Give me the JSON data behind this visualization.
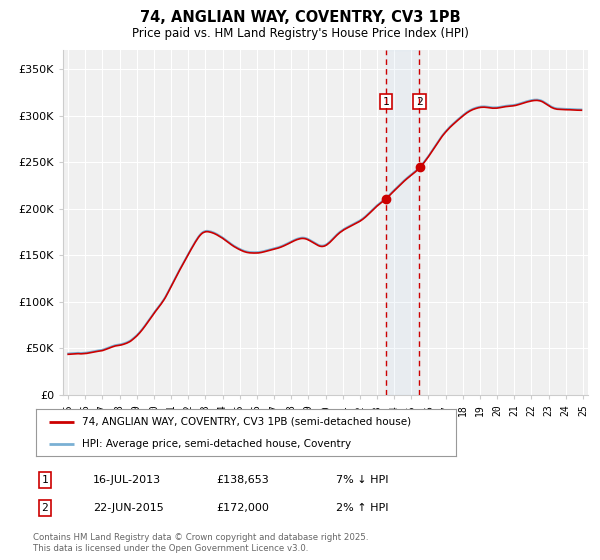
{
  "title": "74, ANGLIAN WAY, COVENTRY, CV3 1PB",
  "subtitle": "Price paid vs. HM Land Registry's House Price Index (HPI)",
  "ylim": [
    0,
    370000
  ],
  "yticks": [
    0,
    50000,
    100000,
    150000,
    200000,
    250000,
    300000,
    350000
  ],
  "ytick_labels": [
    "£0",
    "£50K",
    "£100K",
    "£150K",
    "£200K",
    "£250K",
    "£300K",
    "£350K"
  ],
  "background_color": "#ffffff",
  "plot_bg_color": "#f0f0f0",
  "grid_color": "#ffffff",
  "hpi_color": "#7ab0d4",
  "price_color": "#cc0000",
  "purchase1_date": 2013.54,
  "purchase2_date": 2015.47,
  "purchase1_price": 138653,
  "purchase2_price": 172000,
  "purchase1_label": "16-JUL-2013",
  "purchase2_label": "22-JUN-2015",
  "purchase1_note": "7% ↓ HPI",
  "purchase2_note": "2% ↑ HPI",
  "legend_line1": "74, ANGLIAN WAY, COVENTRY, CV3 1PB (semi-detached house)",
  "legend_line2": "HPI: Average price, semi-detached house, Coventry",
  "footer": "Contains HM Land Registry data © Crown copyright and database right 2025.\nThis data is licensed under the Open Government Licence v3.0.",
  "years": [
    1995.0,
    1995.083,
    1995.167,
    1995.25,
    1995.333,
    1995.417,
    1995.5,
    1995.583,
    1995.667,
    1995.75,
    1995.833,
    1995.917,
    1996.0,
    1996.083,
    1996.167,
    1996.25,
    1996.333,
    1996.417,
    1996.5,
    1996.583,
    1996.667,
    1996.75,
    1996.833,
    1996.917,
    1997.0,
    1997.083,
    1997.167,
    1997.25,
    1997.333,
    1997.417,
    1997.5,
    1997.583,
    1997.667,
    1997.75,
    1997.833,
    1997.917,
    1998.0,
    1998.083,
    1998.167,
    1998.25,
    1998.333,
    1998.417,
    1998.5,
    1998.583,
    1998.667,
    1998.75,
    1998.833,
    1998.917,
    1999.0,
    1999.083,
    1999.167,
    1999.25,
    1999.333,
    1999.417,
    1999.5,
    1999.583,
    1999.667,
    1999.75,
    1999.833,
    1999.917,
    2000.0,
    2000.083,
    2000.167,
    2000.25,
    2000.333,
    2000.417,
    2000.5,
    2000.583,
    2000.667,
    2000.75,
    2000.833,
    2000.917,
    2001.0,
    2001.083,
    2001.167,
    2001.25,
    2001.333,
    2001.417,
    2001.5,
    2001.583,
    2001.667,
    2001.75,
    2001.833,
    2001.917,
    2002.0,
    2002.083,
    2002.167,
    2002.25,
    2002.333,
    2002.417,
    2002.5,
    2002.583,
    2002.667,
    2002.75,
    2002.833,
    2002.917,
    2003.0,
    2003.083,
    2003.167,
    2003.25,
    2003.333,
    2003.417,
    2003.5,
    2003.583,
    2003.667,
    2003.75,
    2003.833,
    2003.917,
    2004.0,
    2004.083,
    2004.167,
    2004.25,
    2004.333,
    2004.417,
    2004.5,
    2004.583,
    2004.667,
    2004.75,
    2004.833,
    2004.917,
    2005.0,
    2005.083,
    2005.167,
    2005.25,
    2005.333,
    2005.417,
    2005.5,
    2005.583,
    2005.667,
    2005.75,
    2005.833,
    2005.917,
    2006.0,
    2006.083,
    2006.167,
    2006.25,
    2006.333,
    2006.417,
    2006.5,
    2006.583,
    2006.667,
    2006.75,
    2006.833,
    2006.917,
    2007.0,
    2007.083,
    2007.167,
    2007.25,
    2007.333,
    2007.417,
    2007.5,
    2007.583,
    2007.667,
    2007.75,
    2007.833,
    2007.917,
    2008.0,
    2008.083,
    2008.167,
    2008.25,
    2008.333,
    2008.417,
    2008.5,
    2008.583,
    2008.667,
    2008.75,
    2008.833,
    2008.917,
    2009.0,
    2009.083,
    2009.167,
    2009.25,
    2009.333,
    2009.417,
    2009.5,
    2009.583,
    2009.667,
    2009.75,
    2009.833,
    2009.917,
    2010.0,
    2010.083,
    2010.167,
    2010.25,
    2010.333,
    2010.417,
    2010.5,
    2010.583,
    2010.667,
    2010.75,
    2010.833,
    2010.917,
    2011.0,
    2011.083,
    2011.167,
    2011.25,
    2011.333,
    2011.417,
    2011.5,
    2011.583,
    2011.667,
    2011.75,
    2011.833,
    2011.917,
    2012.0,
    2012.083,
    2012.167,
    2012.25,
    2012.333,
    2012.417,
    2012.5,
    2012.583,
    2012.667,
    2012.75,
    2012.833,
    2012.917,
    2013.0,
    2013.083,
    2013.167,
    2013.25,
    2013.333,
    2013.417,
    2013.5,
    2013.583,
    2013.667,
    2013.75,
    2013.833,
    2013.917,
    2014.0,
    2014.083,
    2014.167,
    2014.25,
    2014.333,
    2014.417,
    2014.5,
    2014.583,
    2014.667,
    2014.75,
    2014.833,
    2014.917,
    2015.0,
    2015.083,
    2015.167,
    2015.25,
    2015.333,
    2015.417,
    2015.5,
    2015.583,
    2015.667,
    2015.75,
    2015.833,
    2015.917,
    2016.0,
    2016.083,
    2016.167,
    2016.25,
    2016.333,
    2016.417,
    2016.5,
    2016.583,
    2016.667,
    2016.75,
    2016.833,
    2016.917,
    2017.0,
    2017.083,
    2017.167,
    2017.25,
    2017.333,
    2017.417,
    2017.5,
    2017.583,
    2017.667,
    2017.75,
    2017.833,
    2017.917,
    2018.0,
    2018.083,
    2018.167,
    2018.25,
    2018.333,
    2018.417,
    2018.5,
    2018.583,
    2018.667,
    2018.75,
    2018.833,
    2018.917,
    2019.0,
    2019.083,
    2019.167,
    2019.25,
    2019.333,
    2019.417,
    2019.5,
    2019.583,
    2019.667,
    2019.75,
    2019.833,
    2019.917,
    2020.0,
    2020.083,
    2020.167,
    2020.25,
    2020.333,
    2020.417,
    2020.5,
    2020.583,
    2020.667,
    2020.75,
    2020.833,
    2020.917,
    2021.0,
    2021.083,
    2021.167,
    2021.25,
    2021.333,
    2021.417,
    2021.5,
    2021.583,
    2021.667,
    2021.75,
    2021.833,
    2021.917,
    2022.0,
    2022.083,
    2022.167,
    2022.25,
    2022.333,
    2022.417,
    2022.5,
    2022.583,
    2022.667,
    2022.75,
    2022.833,
    2022.917,
    2023.0,
    2023.083,
    2023.167,
    2023.25,
    2023.333,
    2023.417,
    2023.5,
    2023.583,
    2023.667,
    2023.75,
    2023.833,
    2023.917,
    2024.0,
    2024.083,
    2024.167,
    2024.25,
    2024.333,
    2024.417,
    2024.5,
    2024.583,
    2024.667,
    2024.75,
    2024.833,
    2024.917
  ],
  "hpi_values": [
    44500,
    44600,
    44700,
    44800,
    44900,
    45000,
    45100,
    45200,
    45100,
    45000,
    45100,
    45200,
    45300,
    45500,
    45800,
    46200,
    46500,
    46800,
    47100,
    47400,
    47600,
    47800,
    48000,
    48200,
    48500,
    49000,
    49600,
    50200,
    50800,
    51400,
    52000,
    52500,
    53000,
    53500,
    53800,
    54000,
    54200,
    54500,
    54900,
    55400,
    55900,
    56500,
    57200,
    58000,
    59000,
    60200,
    61500,
    62800,
    64200,
    65800,
    67500,
    69300,
    71200,
    73200,
    75300,
    77400,
    79500,
    81700,
    83900,
    86100,
    88300,
    90400,
    92400,
    94400,
    96400,
    98500,
    100700,
    103000,
    105500,
    108300,
    111200,
    114200,
    117200,
    120200,
    123200,
    126200,
    129100,
    132000,
    134900,
    137700,
    140500,
    143300,
    146100,
    148900,
    151700,
    154500,
    157200,
    159900,
    162500,
    165100,
    167500,
    169800,
    171800,
    173500,
    174800,
    175600,
    176100,
    176300,
    176200,
    175900,
    175500,
    175000,
    174400,
    173700,
    172900,
    172000,
    171100,
    170200,
    169200,
    168100,
    167000,
    165900,
    164700,
    163500,
    162400,
    161300,
    160300,
    159400,
    158500,
    157700,
    156900,
    156200,
    155500,
    154900,
    154400,
    154000,
    153700,
    153500,
    153400,
    153300,
    153300,
    153300,
    153300,
    153400,
    153600,
    153900,
    154200,
    154600,
    155000,
    155400,
    155800,
    156200,
    156600,
    157000,
    157400,
    157800,
    158200,
    158700,
    159200,
    159800,
    160400,
    161100,
    161800,
    162600,
    163300,
    164100,
    164900,
    165700,
    166400,
    167100,
    167700,
    168200,
    168600,
    168900,
    169000,
    168900,
    168600,
    168100,
    167400,
    166600,
    165700,
    164800,
    163800,
    162900,
    162000,
    161300,
    160700,
    160400,
    160400,
    160700,
    161300,
    162200,
    163400,
    164700,
    166200,
    167800,
    169400,
    171000,
    172500,
    173900,
    175200,
    176300,
    177400,
    178400,
    179300,
    180100,
    180900,
    181700,
    182500,
    183200,
    184000,
    184800,
    185600,
    186500,
    187400,
    188400,
    189500,
    190700,
    192000,
    193400,
    194800,
    196300,
    197800,
    199300,
    200800,
    202300,
    203700,
    205000,
    206200,
    207400,
    208600,
    209800,
    211100,
    212500,
    213900,
    215500,
    217000,
    218600,
    220100,
    221700,
    223200,
    224700,
    226200,
    227700,
    229100,
    230500,
    231900,
    233200,
    234500,
    235800,
    237000,
    238200,
    239400,
    240700,
    242100,
    243600,
    245200,
    246900,
    248700,
    250600,
    252600,
    254700,
    256800,
    259100,
    261400,
    263700,
    266100,
    268400,
    270700,
    273000,
    275200,
    277400,
    279500,
    281400,
    283200,
    284900,
    286600,
    288200,
    289700,
    291100,
    292500,
    293800,
    295200,
    296600,
    297900,
    299200,
    300500,
    301700,
    302900,
    304000,
    305000,
    305900,
    306700,
    307400,
    308000,
    308500,
    309000,
    309400,
    309700,
    309900,
    310000,
    310000,
    309900,
    309700,
    309500,
    309200,
    309000,
    308900,
    308900,
    308900,
    309000,
    309200,
    309500,
    309800,
    310100,
    310400,
    310600,
    310800,
    310900,
    311100,
    311200,
    311400,
    311600,
    311900,
    312300,
    312700,
    313200,
    313700,
    314200,
    314700,
    315200,
    315600,
    316000,
    316400,
    316700,
    317000,
    317200,
    317300,
    317300,
    317100,
    316800,
    316300,
    315600,
    314700,
    313700,
    312700,
    311700,
    310700,
    309800,
    309100,
    308500,
    308100,
    307800,
    307700,
    307600,
    307500,
    307400,
    307400,
    307300,
    307300,
    307200,
    307200,
    307100,
    307000,
    306900,
    306900,
    306800,
    306800,
    306800,
    306700
  ],
  "price_values": [
    43500,
    43600,
    43700,
    43800,
    43900,
    44000,
    44100,
    44200,
    44100,
    44000,
    44100,
    44200,
    44300,
    44500,
    44800,
    45200,
    45500,
    45800,
    46100,
    46400,
    46600,
    46800,
    47000,
    47200,
    47500,
    48000,
    48600,
    49200,
    49800,
    50400,
    51000,
    51500,
    52000,
    52500,
    52800,
    53000,
    53200,
    53500,
    53900,
    54400,
    54900,
    55500,
    56200,
    57000,
    58000,
    59200,
    60500,
    61800,
    63200,
    64800,
    66500,
    68300,
    70200,
    72200,
    74300,
    76400,
    78500,
    80700,
    82900,
    85100,
    87300,
    89400,
    91400,
    93400,
    95400,
    97500,
    99700,
    102000,
    104500,
    107300,
    110200,
    113200,
    116200,
    119200,
    122200,
    125200,
    128100,
    131000,
    133900,
    136700,
    139500,
    142300,
    145100,
    147900,
    150700,
    153500,
    156200,
    158900,
    161500,
    164100,
    166500,
    168800,
    170800,
    172500,
    173800,
    174600,
    175100,
    175300,
    175200,
    174900,
    174500,
    174000,
    173400,
    172700,
    171900,
    171000,
    170100,
    169200,
    168200,
    167100,
    166000,
    164900,
    163700,
    162500,
    161400,
    160300,
    159300,
    158400,
    157500,
    156700,
    155900,
    155200,
    154500,
    153900,
    153400,
    153000,
    152700,
    152500,
    152400,
    152300,
    152300,
    152300,
    152300,
    152400,
    152600,
    152900,
    153200,
    153600,
    154000,
    154400,
    154800,
    155200,
    155600,
    156000,
    156400,
    156800,
    157200,
    157700,
    158200,
    158800,
    159400,
    160100,
    160800,
    161600,
    162300,
    163100,
    163900,
    164700,
    165400,
    166100,
    166700,
    167200,
    167600,
    167900,
    168000,
    167900,
    167600,
    167100,
    166400,
    165600,
    164700,
    163800,
    162800,
    161900,
    161000,
    160300,
    159700,
    159400,
    159400,
    159700,
    160300,
    161200,
    162400,
    163700,
    165200,
    166800,
    168400,
    170000,
    171500,
    172900,
    174200,
    175300,
    176400,
    177400,
    178300,
    179100,
    179900,
    180700,
    181500,
    182200,
    183000,
    183800,
    184600,
    185500,
    186400,
    187400,
    188500,
    189700,
    191000,
    192400,
    193800,
    195300,
    196800,
    198300,
    199800,
    201300,
    202700,
    204000,
    205200,
    206400,
    207600,
    208800,
    210100,
    211500,
    212900,
    214500,
    216000,
    217600,
    219100,
    220700,
    222200,
    223700,
    225200,
    226700,
    228100,
    229500,
    230900,
    232200,
    233500,
    234800,
    236000,
    237200,
    238400,
    239700,
    241100,
    242600,
    244200,
    245900,
    247700,
    249600,
    251600,
    253700,
    255800,
    258100,
    260400,
    262700,
    265100,
    267400,
    269700,
    272000,
    274200,
    276400,
    278500,
    280400,
    282200,
    283900,
    285600,
    287200,
    288700,
    290100,
    291500,
    292800,
    294200,
    295600,
    296900,
    298200,
    299500,
    300700,
    301900,
    303000,
    304000,
    304900,
    305700,
    306400,
    307000,
    307500,
    308000,
    308400,
    308700,
    308900,
    309000,
    309000,
    308900,
    308700,
    308500,
    308200,
    308000,
    307900,
    307900,
    307900,
    308000,
    308200,
    308500,
    308800,
    309100,
    309400,
    309600,
    309800,
    309900,
    310100,
    310200,
    310400,
    310600,
    310900,
    311300,
    311700,
    312200,
    312700,
    313200,
    313700,
    314200,
    314600,
    315000,
    315400,
    315700,
    316000,
    316200,
    316300,
    316300,
    316100,
    315800,
    315300,
    314600,
    313700,
    312700,
    311700,
    310700,
    309700,
    308800,
    308100,
    307500,
    307100,
    306800,
    306700,
    306600,
    306500,
    306400,
    306400,
    306300,
    306300,
    306200,
    306200,
    306100,
    306000,
    305900,
    305900,
    305800,
    305800,
    305800,
    305700
  ]
}
